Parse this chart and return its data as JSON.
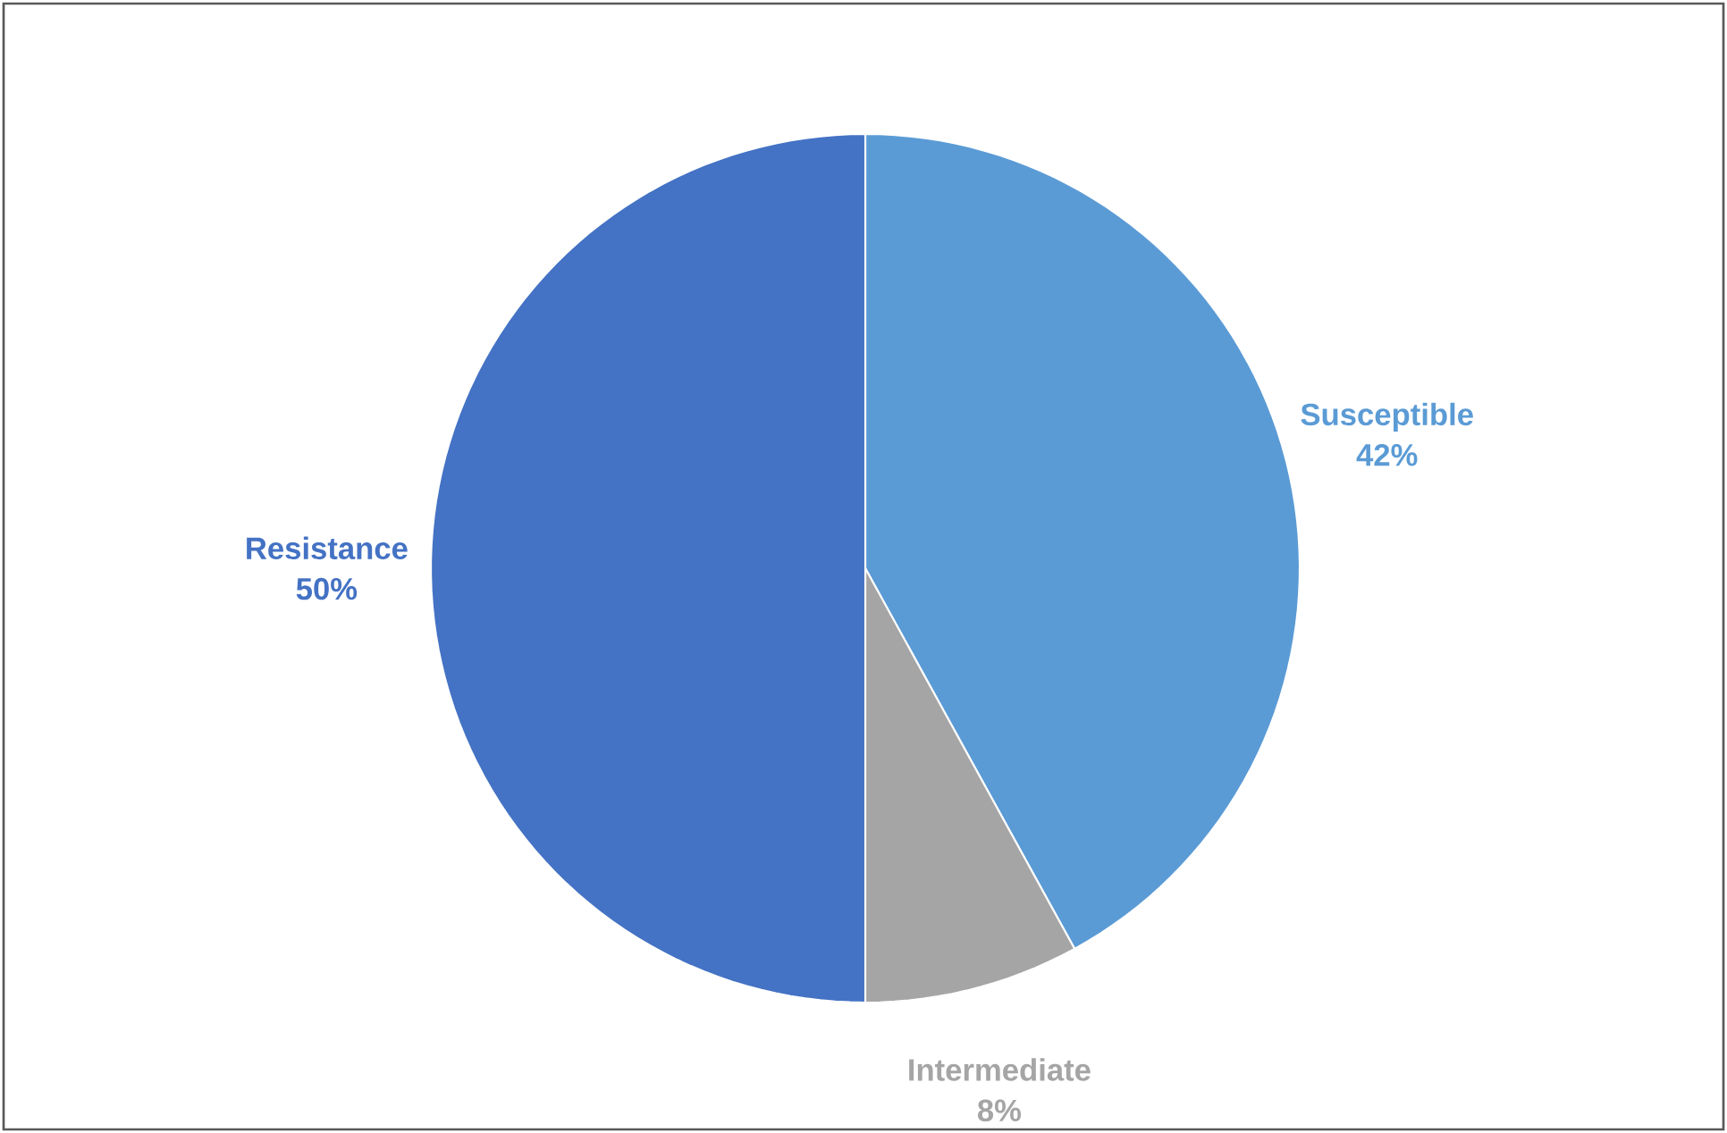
{
  "chart_data": {
    "type": "pie",
    "categories": [
      "Susceptible",
      "Intermediate",
      "Resistance"
    ],
    "values": [
      42,
      8,
      50
    ],
    "colors": [
      "#5b9bd5",
      "#a5a5a5",
      "#4472c4"
    ],
    "value_labels": [
      "42%",
      "8%",
      "50%"
    ]
  }
}
